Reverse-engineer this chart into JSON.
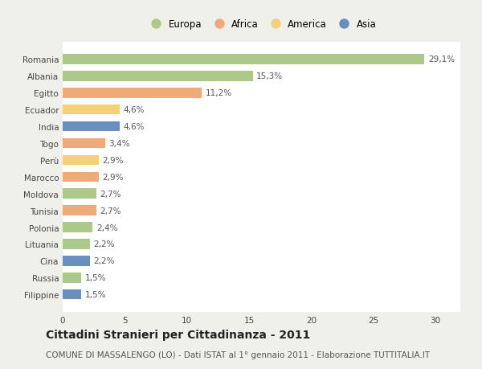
{
  "countries": [
    "Romania",
    "Albania",
    "Egitto",
    "Ecuador",
    "India",
    "Togo",
    "Perù",
    "Marocco",
    "Moldova",
    "Tunisia",
    "Polonia",
    "Lituania",
    "Cina",
    "Russia",
    "Filippine"
  ],
  "values": [
    29.1,
    15.3,
    11.2,
    4.6,
    4.6,
    3.4,
    2.9,
    2.9,
    2.7,
    2.7,
    2.4,
    2.2,
    2.2,
    1.5,
    1.5
  ],
  "continents": [
    "Europa",
    "Europa",
    "Africa",
    "America",
    "Asia",
    "Africa",
    "America",
    "Africa",
    "Europa",
    "Africa",
    "Europa",
    "Europa",
    "Asia",
    "Europa",
    "Asia"
  ],
  "colors": {
    "Europa": "#adc98a",
    "Africa": "#f0aa7a",
    "America": "#f5d07a",
    "Asia": "#6a8ec0"
  },
  "legend_order": [
    "Europa",
    "Africa",
    "America",
    "Asia"
  ],
  "xlim": [
    0,
    32
  ],
  "xticks": [
    0,
    5,
    10,
    15,
    20,
    25,
    30
  ],
  "title": "Cittadini Stranieri per Cittadinanza - 2011",
  "subtitle": "COMUNE DI MASSALENGO (LO) - Dati ISTAT al 1° gennaio 2011 - Elaborazione TUTTITALIA.IT",
  "background_color": "#f0f0eb",
  "plot_bg_color": "#ffffff",
  "grid_color": "#ffffff",
  "bar_height": 0.6,
  "label_fontsize": 7.5,
  "tick_fontsize": 7.5,
  "title_fontsize": 10,
  "subtitle_fontsize": 7.5
}
